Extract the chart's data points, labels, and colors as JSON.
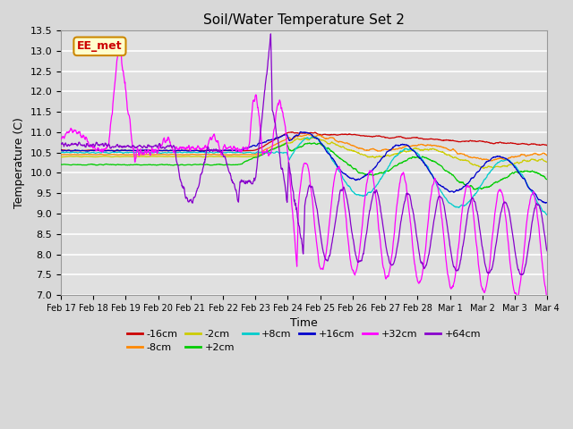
{
  "title": "Soil/Water Temperature Set 2",
  "xlabel": "Time",
  "ylabel": "Temperature (C)",
  "ylim": [
    7.0,
    13.5
  ],
  "yticks": [
    7.0,
    7.5,
    8.0,
    8.5,
    9.0,
    9.5,
    10.0,
    10.5,
    11.0,
    11.5,
    12.0,
    12.5,
    13.0,
    13.5
  ],
  "fig_bg_color": "#d8d8d8",
  "plot_bg_color": "#e0e0e0",
  "grid_color": "#ffffff",
  "annotation_text": "EE_met",
  "annotation_bg": "#ffffcc",
  "annotation_border": "#cc8800",
  "series": [
    {
      "label": "-16cm",
      "color": "#cc0000"
    },
    {
      "label": "-8cm",
      "color": "#ff8800"
    },
    {
      "label": "-2cm",
      "color": "#cccc00"
    },
    {
      "label": "+2cm",
      "color": "#00cc00"
    },
    {
      "label": "+8cm",
      "color": "#00cccc"
    },
    {
      "label": "+16cm",
      "color": "#0000cc"
    },
    {
      "label": "+32cm",
      "color": "#ff00ff"
    },
    {
      "label": "+64cm",
      "color": "#8800cc"
    }
  ],
  "xtick_labels": [
    "Feb 17",
    "Feb 18",
    "Feb 19",
    "Feb 20",
    "Feb 21",
    "Feb 22",
    "Feb 23",
    "Feb 24",
    "Feb 25",
    "Feb 26",
    "Feb 27",
    "Feb 28",
    "Mar 1",
    "Mar 2",
    "Mar 3",
    "Mar 4"
  ],
  "num_points": 1600
}
